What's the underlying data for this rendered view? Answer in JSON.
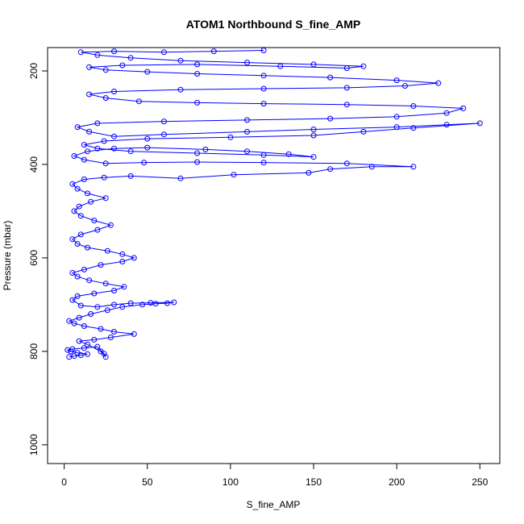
{
  "chart_data": {
    "type": "scatter",
    "title": "ATOM1 Northbound S_fine_AMP",
    "xlabel": "S_fine_AMP",
    "ylabel": "Pressure (mbar)",
    "xlim": [
      -10,
      262
    ],
    "ylim": [
      1040,
      150
    ],
    "y_reversed": true,
    "x_ticks": [
      0,
      50,
      100,
      150,
      200,
      250
    ],
    "y_ticks": [
      200,
      400,
      600,
      800,
      1000
    ],
    "grid": false,
    "legend": "none",
    "style": {
      "points": "open-circle",
      "connected": true
    },
    "series": [
      {
        "color": "#0000ff",
        "points": [
          [
            3,
            812
          ],
          [
            6,
            810
          ],
          [
            10,
            808
          ],
          [
            14,
            806
          ],
          [
            8,
            803
          ],
          [
            4,
            800
          ],
          [
            2,
            797
          ],
          [
            5,
            795
          ],
          [
            12,
            793
          ],
          [
            20,
            790
          ],
          [
            24,
            805
          ],
          [
            25,
            812
          ],
          [
            22,
            800
          ],
          [
            14,
            785
          ],
          [
            9,
            778
          ],
          [
            18,
            775
          ],
          [
            28,
            770
          ],
          [
            42,
            763
          ],
          [
            30,
            758
          ],
          [
            22,
            752
          ],
          [
            12,
            746
          ],
          [
            6,
            740
          ],
          [
            3,
            735
          ],
          [
            9,
            728
          ],
          [
            16,
            720
          ],
          [
            26,
            712
          ],
          [
            35,
            705
          ],
          [
            47,
            700
          ],
          [
            55,
            698
          ],
          [
            62,
            697
          ],
          [
            66,
            695
          ],
          [
            52,
            696
          ],
          [
            40,
            697
          ],
          [
            30,
            700
          ],
          [
            20,
            705
          ],
          [
            10,
            702
          ],
          [
            5,
            690
          ],
          [
            8,
            682
          ],
          [
            18,
            676
          ],
          [
            30,
            670
          ],
          [
            36,
            662
          ],
          [
            25,
            655
          ],
          [
            15,
            648
          ],
          [
            8,
            640
          ],
          [
            5,
            632
          ],
          [
            12,
            625
          ],
          [
            22,
            615
          ],
          [
            35,
            608
          ],
          [
            42,
            600
          ],
          [
            35,
            592
          ],
          [
            26,
            585
          ],
          [
            14,
            578
          ],
          [
            8,
            570
          ],
          [
            5,
            560
          ],
          [
            10,
            550
          ],
          [
            20,
            540
          ],
          [
            28,
            530
          ],
          [
            18,
            520
          ],
          [
            10,
            510
          ],
          [
            6,
            500
          ],
          [
            9,
            490
          ],
          [
            16,
            480
          ],
          [
            25,
            472
          ],
          [
            14,
            462
          ],
          [
            8,
            452
          ],
          [
            5,
            442
          ],
          [
            12,
            432
          ],
          [
            24,
            428
          ],
          [
            40,
            425
          ],
          [
            70,
            430
          ],
          [
            102,
            422
          ],
          [
            147,
            418
          ],
          [
            160,
            410
          ],
          [
            185,
            405
          ],
          [
            210,
            405
          ],
          [
            170,
            398
          ],
          [
            120,
            396
          ],
          [
            80,
            395
          ],
          [
            48,
            396
          ],
          [
            25,
            398
          ],
          [
            12,
            390
          ],
          [
            6,
            382
          ],
          [
            14,
            372
          ],
          [
            30,
            366
          ],
          [
            50,
            364
          ],
          [
            85,
            368
          ],
          [
            110,
            372
          ],
          [
            135,
            378
          ],
          [
            150,
            384
          ],
          [
            120,
            380
          ],
          [
            80,
            376
          ],
          [
            40,
            372
          ],
          [
            20,
            366
          ],
          [
            12,
            358
          ],
          [
            24,
            350
          ],
          [
            50,
            345
          ],
          [
            100,
            342
          ],
          [
            150,
            338
          ],
          [
            180,
            330
          ],
          [
            210,
            322
          ],
          [
            250,
            312
          ],
          [
            230,
            315
          ],
          [
            200,
            320
          ],
          [
            150,
            325
          ],
          [
            110,
            330
          ],
          [
            60,
            336
          ],
          [
            30,
            340
          ],
          [
            15,
            330
          ],
          [
            8,
            320
          ],
          [
            20,
            312
          ],
          [
            60,
            308
          ],
          [
            110,
            305
          ],
          [
            160,
            302
          ],
          [
            200,
            298
          ],
          [
            230,
            290
          ],
          [
            240,
            280
          ],
          [
            210,
            275
          ],
          [
            170,
            272
          ],
          [
            120,
            270
          ],
          [
            80,
            268
          ],
          [
            45,
            265
          ],
          [
            25,
            258
          ],
          [
            15,
            250
          ],
          [
            30,
            244
          ],
          [
            70,
            240
          ],
          [
            120,
            238
          ],
          [
            170,
            236
          ],
          [
            205,
            232
          ],
          [
            225,
            226
          ],
          [
            200,
            220
          ],
          [
            160,
            214
          ],
          [
            120,
            210
          ],
          [
            80,
            206
          ],
          [
            50,
            202
          ],
          [
            25,
            198
          ],
          [
            15,
            192
          ],
          [
            35,
            188
          ],
          [
            80,
            186
          ],
          [
            130,
            190
          ],
          [
            170,
            194
          ],
          [
            180,
            190
          ],
          [
            150,
            186
          ],
          [
            110,
            182
          ],
          [
            70,
            178
          ],
          [
            40,
            172
          ],
          [
            20,
            166
          ],
          [
            10,
            160
          ],
          [
            30,
            158
          ],
          [
            60,
            160
          ],
          [
            90,
            158
          ],
          [
            120,
            156
          ]
        ]
      }
    ]
  }
}
